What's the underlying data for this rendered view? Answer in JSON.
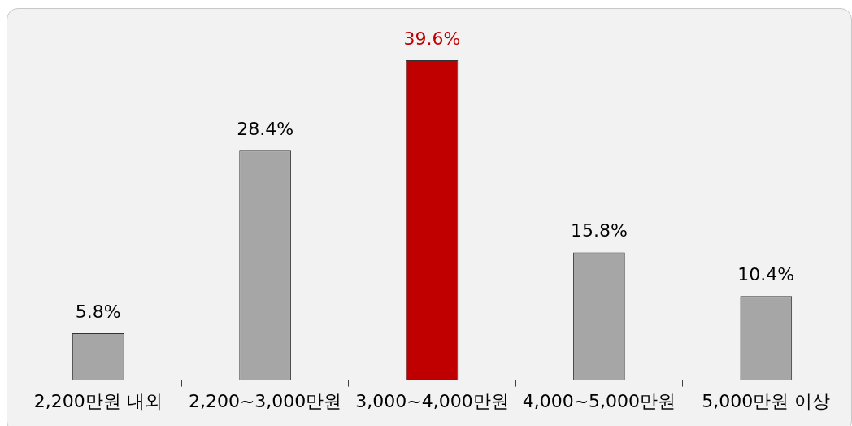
{
  "chart_data": {
    "type": "bar",
    "categories": [
      "2,200만원 내외",
      "2,200~3,000만원",
      "3,000~4,000만원",
      "4,000~5,000만원",
      "5,000만원 이상"
    ],
    "values": [
      5.8,
      28.4,
      39.6,
      15.8,
      10.4
    ],
    "colors": [
      "#a6a6a6",
      "#a6a6a6",
      "#c00000",
      "#a6a6a6",
      "#a6a6a6"
    ],
    "value_labels": [
      "5.8%",
      "28.4%",
      "39.6%",
      "15.8%",
      "10.4%"
    ],
    "grid": false,
    "legend": false
  }
}
